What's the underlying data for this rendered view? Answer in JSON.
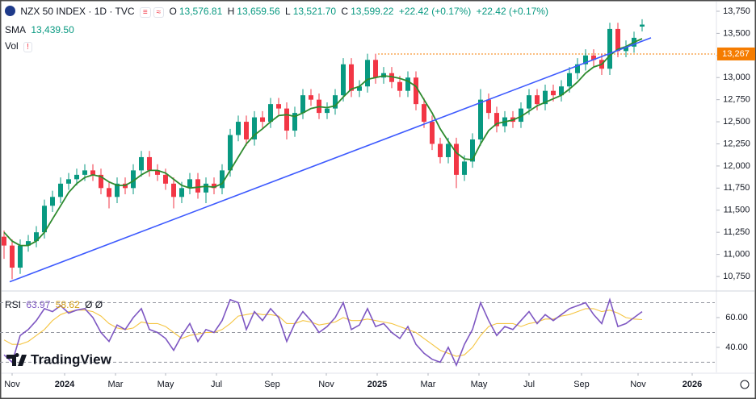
{
  "header": {
    "title": "NZX 50 INDEX · 1D · TVC",
    "ohlc": [
      {
        "key": "O",
        "text": "13,576.81"
      },
      {
        "key": "H",
        "text": "13,659.56"
      },
      {
        "key": "L",
        "text": "13,521.70"
      },
      {
        "key": "C",
        "text": "13,599.22"
      }
    ],
    "change": [
      "+22.42 (+0.17%)",
      "+22.42 (+0.17%)"
    ],
    "sma": {
      "label": "SMA",
      "text": "13,439.50"
    },
    "vol": {
      "label": "Vol",
      "alert": "!"
    },
    "rsi": {
      "label": "RSI",
      "texts": [
        "63.97",
        "58.62",
        "Ø Ø"
      ]
    }
  },
  "logo": "TradingView",
  "chart_data": [
    {
      "type": "candlestick",
      "up_color": "#089981",
      "down_color": "#f23645",
      "open": [
        11200,
        11100,
        10850,
        11100,
        11150,
        11250,
        11550,
        11650,
        11800,
        11850,
        11900,
        11950,
        11900,
        11750,
        11650,
        11800,
        11750,
        11950,
        12100,
        11950,
        11900,
        11800,
        11650,
        11750,
        11850,
        11700,
        11800,
        11750,
        11950,
        12350,
        12500,
        12300,
        12550,
        12500,
        12700,
        12650,
        12400,
        12600,
        12800,
        12750,
        12600,
        12650,
        12800,
        13150,
        12850,
        12900,
        13200,
        13000,
        13050,
        12950,
        12850,
        13000,
        12700,
        12500,
        12250,
        12100,
        12250,
        11900,
        12050,
        12300,
        12750,
        12600,
        12450,
        12550,
        12500,
        12650,
        12800,
        12700,
        12850,
        12800,
        12900,
        13050,
        13150,
        13250,
        13200,
        13100,
        13550,
        13300,
        13350,
        13576.81
      ],
      "high": [
        11270,
        11170,
        11170,
        11220,
        11320,
        11620,
        11720,
        11870,
        11920,
        11970,
        12020,
        12020,
        11970,
        11820,
        11870,
        11870,
        12020,
        12170,
        12170,
        12020,
        11970,
        11870,
        11820,
        11920,
        11920,
        11870,
        11870,
        12020,
        12420,
        12570,
        12570,
        12620,
        12620,
        12770,
        12770,
        12720,
        12670,
        12870,
        12870,
        12820,
        12720,
        12870,
        13220,
        13220,
        12970,
        13270,
        13270,
        13120,
        13120,
        13020,
        13070,
        13070,
        12770,
        12570,
        12320,
        12320,
        12320,
        12120,
        12370,
        12870,
        12820,
        12670,
        12620,
        12620,
        12720,
        12870,
        12870,
        12920,
        12920,
        12970,
        13120,
        13220,
        13320,
        13320,
        13270,
        13620,
        13620,
        13420,
        13520,
        13659.56
      ],
      "low": [
        10950,
        10720,
        10780,
        11030,
        11080,
        11180,
        11480,
        11580,
        11730,
        11780,
        11830,
        11830,
        11680,
        11520,
        11580,
        11680,
        11680,
        11880,
        11880,
        11830,
        11730,
        11520,
        11580,
        11680,
        11630,
        11580,
        11680,
        11680,
        11880,
        12280,
        12230,
        12230,
        12430,
        12430,
        12580,
        12300,
        12330,
        12530,
        12680,
        12530,
        12530,
        12580,
        12730,
        12780,
        12780,
        12830,
        12930,
        12930,
        12880,
        12780,
        12780,
        12630,
        12430,
        12180,
        12030,
        12030,
        11750,
        11830,
        11980,
        12230,
        12530,
        12380,
        12380,
        12430,
        12430,
        12580,
        12630,
        12630,
        12730,
        12730,
        12830,
        12980,
        13080,
        13130,
        13030,
        13030,
        13230,
        13230,
        13280,
        13521.7
      ],
      "close": [
        11100,
        10850,
        11100,
        11150,
        11250,
        11550,
        11650,
        11800,
        11850,
        11900,
        11950,
        11900,
        11750,
        11650,
        11800,
        11750,
        11950,
        12100,
        11950,
        11900,
        11800,
        11650,
        11750,
        11850,
        11700,
        11800,
        11750,
        11950,
        12350,
        12500,
        12300,
        12550,
        12500,
        12700,
        12650,
        12400,
        12600,
        12800,
        12750,
        12600,
        12650,
        12800,
        13150,
        12850,
        12900,
        13200,
        13000,
        13050,
        12950,
        12850,
        13000,
        12700,
        12500,
        12250,
        12100,
        12250,
        11900,
        12050,
        12300,
        12750,
        12600,
        12450,
        12550,
        12500,
        12650,
        12800,
        12700,
        12850,
        12800,
        12900,
        13050,
        13150,
        13250,
        13200,
        13100,
        13550,
        13300,
        13350,
        13450,
        13599.22
      ],
      "sma": {
        "color": "#2e8b2e",
        "values": [
          11250,
          11150,
          11100,
          11100,
          11150,
          11250,
          11400,
          11550,
          11700,
          11800,
          11870,
          11900,
          11880,
          11820,
          11780,
          11780,
          11830,
          11900,
          11950,
          11950,
          11920,
          11850,
          11780,
          11750,
          11760,
          11770,
          11760,
          11800,
          11950,
          12100,
          12250,
          12350,
          12420,
          12500,
          12570,
          12580,
          12560,
          12600,
          12650,
          12670,
          12660,
          12680,
          12780,
          12870,
          12900,
          12980,
          13000,
          13020,
          13010,
          12990,
          12960,
          12900,
          12750,
          12600,
          12420,
          12280,
          12150,
          12080,
          12070,
          12250,
          12400,
          12480,
          12500,
          12520,
          12560,
          12620,
          12680,
          12720,
          12760,
          12800,
          12870,
          12950,
          13050,
          13120,
          13150,
          13250,
          13320,
          13350,
          13400,
          13439.5
        ]
      },
      "trendline": {
        "color": "#3d5afe",
        "x": [
          0.7,
          80.1
        ],
        "y": [
          10690,
          13450
        ]
      },
      "price_line": {
        "value": 13267,
        "label": "13,267",
        "from": 46.3,
        "color": "#f57c00"
      },
      "ylim": [
        10595,
        13841
      ],
      "yticks": [
        {
          "value": 10750,
          "label": "10,750"
        },
        {
          "value": 11000,
          "label": "11,000"
        },
        {
          "value": 11250,
          "label": "11,250"
        },
        {
          "value": 11500,
          "label": "11,500"
        },
        {
          "value": 11750,
          "label": "11,750"
        },
        {
          "value": 12000,
          "label": "12,000"
        },
        {
          "value": 12250,
          "label": "12,250"
        },
        {
          "value": 12500,
          "label": "12,500"
        },
        {
          "value": 12750,
          "label": "12,750"
        },
        {
          "value": 13000,
          "label": "13,000"
        },
        {
          "value": 13250,
          "label": "13,250"
        },
        {
          "value": 13500,
          "label": "13,500"
        },
        {
          "value": 13750,
          "label": "13,750"
        }
      ],
      "xlim": [
        -0.5,
        88
      ],
      "xticks": [
        {
          "value": 1,
          "label": "Nov"
        },
        {
          "value": 7.5,
          "label": "2024"
        },
        {
          "value": 13.8,
          "label": "Mar"
        },
        {
          "value": 20,
          "label": "May"
        },
        {
          "value": 26.3,
          "label": "Jul"
        },
        {
          "value": 33.2,
          "label": "Sep"
        },
        {
          "value": 39.9,
          "label": "Nov"
        },
        {
          "value": 46.2,
          "label": "2025"
        },
        {
          "value": 52.5,
          "label": "Mar"
        },
        {
          "value": 58.8,
          "label": "May"
        },
        {
          "value": 65,
          "label": "Jul"
        },
        {
          "value": 71.5,
          "label": "Sep"
        },
        {
          "value": 78.5,
          "label": "Nov"
        },
        {
          "value": 85.2,
          "label": "2026"
        }
      ]
    },
    {
      "type": "line",
      "series": [
        {
          "color": "#7e57c2",
          "values": [
            35,
            30,
            48,
            52,
            58,
            66,
            64,
            68,
            63,
            65,
            66,
            60,
            50,
            44,
            55,
            52,
            60,
            66,
            52,
            50,
            46,
            38,
            48,
            56,
            44,
            52,
            50,
            58,
            72,
            70,
            52,
            64,
            58,
            66,
            60,
            44,
            56,
            64,
            58,
            50,
            54,
            60,
            70,
            52,
            55,
            66,
            54,
            56,
            50,
            46,
            54,
            42,
            36,
            32,
            30,
            40,
            28,
            42,
            52,
            70,
            58,
            48,
            54,
            52,
            58,
            64,
            56,
            62,
            58,
            62,
            66,
            68,
            70,
            62,
            56,
            72,
            54,
            56,
            60,
            63.97
          ]
        },
        {
          "color": "#f5c542",
          "values": [
            45,
            42,
            42,
            44,
            48,
            52,
            58,
            62,
            64,
            65,
            65,
            64,
            61,
            56,
            53,
            52,
            53,
            57,
            56,
            56,
            54,
            50,
            46,
            48,
            49,
            50,
            50,
            52,
            56,
            61,
            62,
            63,
            62,
            62,
            61,
            56,
            56,
            58,
            57,
            55,
            56,
            57,
            60,
            58,
            58,
            59,
            58,
            57,
            56,
            54,
            52,
            50,
            46,
            42,
            38,
            36,
            34,
            35,
            40,
            48,
            54,
            56,
            56,
            56,
            54,
            56,
            57,
            59,
            59,
            61,
            62,
            64,
            66,
            66,
            64,
            65,
            63,
            60,
            59,
            58.62
          ]
        }
      ],
      "bands": [
        70,
        50,
        30
      ],
      "ylim": [
        23.2,
        77.3
      ],
      "yticks": [
        {
          "value": 60,
          "label": "60.00"
        },
        {
          "value": 40,
          "label": "40.00"
        }
      ]
    }
  ]
}
